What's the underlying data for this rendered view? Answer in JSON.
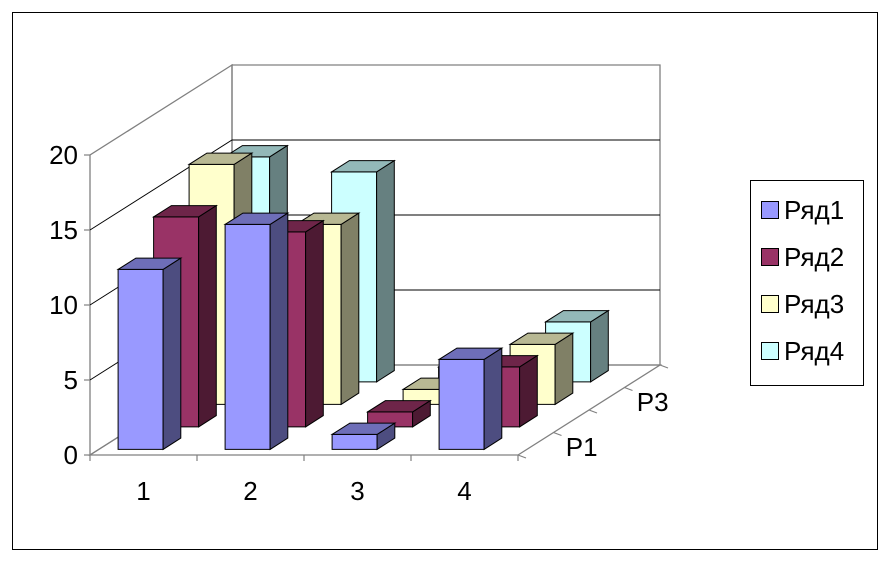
{
  "chart_data": {
    "type": "bar",
    "subtype": "3d-column",
    "title": "",
    "xlabel": "",
    "ylabel": "",
    "categories": [
      "1",
      "2",
      "3",
      "4"
    ],
    "depth_labels": [
      "P1",
      "P3"
    ],
    "ylim": [
      0,
      20
    ],
    "yticks": [
      "0",
      "5",
      "10",
      "15",
      "20"
    ],
    "grid": true,
    "legend_position": "right",
    "series": [
      {
        "name": "Ряд1",
        "color": "#9999ff",
        "values": [
          12,
          15,
          1,
          6
        ]
      },
      {
        "name": "Ряд2",
        "color": "#993366",
        "values": [
          14,
          13,
          1,
          4
        ]
      },
      {
        "name": "Ряд3",
        "color": "#ffffcc",
        "values": [
          16,
          12,
          1,
          4
        ]
      },
      {
        "name": "Ряд4",
        "color": "#ccffff",
        "values": [
          15,
          14,
          1,
          4
        ]
      }
    ]
  }
}
